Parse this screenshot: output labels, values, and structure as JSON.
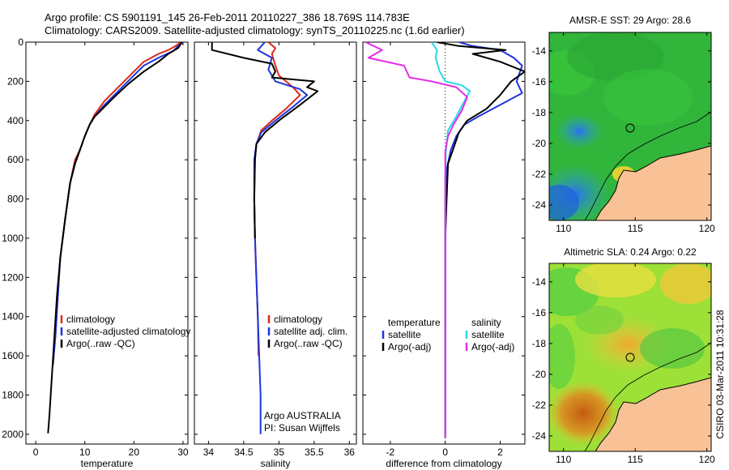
{
  "header": {
    "line1": "Argo profile: CS 5901191_145 26-Feb-2011 20110227_386 18.769S 114.783E",
    "line2": "Climatology: CARS2009. Satellite-adjusted climatology: synTS_20110225.nc (1.6d earlier)"
  },
  "colors": {
    "climatology": "#dd2a1e",
    "satellite": "#1e35dd",
    "argo": "#000000",
    "satellite_sal": "#29d9e6",
    "argo_adj_sal": "#e62ee6",
    "land": "#f8c296",
    "coast": "#000000"
  },
  "chart_data": [
    {
      "type": "line",
      "panel": "temperature",
      "xlabel": "temperature",
      "ylabel": "",
      "xlim": [
        -2,
        31
      ],
      "ylim": [
        2050,
        0
      ],
      "xticks": [
        0,
        10,
        20,
        30
      ],
      "yticks": [
        0,
        200,
        400,
        600,
        800,
        1000,
        1200,
        1400,
        1600,
        1800,
        2000
      ],
      "legend": [
        "climatology",
        "satellite-adjusted climatology",
        "Argo(..raw -QC)"
      ],
      "legend_position": "lower-right",
      "series": [
        {
          "name": "climatology",
          "color_key": "climatology",
          "points": [
            [
              29.5,
              0
            ],
            [
              28.5,
              20
            ],
            [
              27,
              40
            ],
            [
              25,
              60
            ],
            [
              22,
              100
            ],
            [
              20,
              150
            ],
            [
              18,
              200
            ],
            [
              16,
              250
            ],
            [
              14,
              300
            ],
            [
              12,
              370
            ],
            [
              11,
              420
            ],
            [
              10,
              480
            ],
            [
              9,
              550
            ],
            [
              8,
              600
            ],
            [
              7,
              720
            ],
            [
              6,
              900
            ],
            [
              5,
              1100
            ],
            [
              4.5,
              1300
            ],
            [
              4,
              1500
            ],
            [
              3.5,
              1650
            ]
          ]
        },
        {
          "name": "satellite-adjusted climatology",
          "color_key": "satellite",
          "points": [
            [
              30,
              0
            ],
            [
              29,
              20
            ],
            [
              28,
              45
            ],
            [
              25,
              80
            ],
            [
              22,
              120
            ],
            [
              20,
              170
            ],
            [
              18,
              220
            ],
            [
              16,
              270
            ],
            [
              14,
              320
            ],
            [
              12,
              380
            ],
            [
              11,
              420
            ],
            [
              10,
              480
            ],
            [
              9,
              550
            ],
            [
              8,
              620
            ],
            [
              7,
              720
            ],
            [
              6,
              900
            ],
            [
              5,
              1100
            ],
            [
              4.5,
              1300
            ],
            [
              4,
              1500
            ],
            [
              3.5,
              1650
            ]
          ]
        },
        {
          "name": "Argo(..raw -QC)",
          "color_key": "argo",
          "points": [
            [
              29.8,
              0
            ],
            [
              29,
              30
            ],
            [
              27,
              60
            ],
            [
              25,
              100
            ],
            [
              22,
              150
            ],
            [
              19,
              210
            ],
            [
              16,
              280
            ],
            [
              14,
              330
            ],
            [
              12,
              380
            ],
            [
              11,
              420
            ],
            [
              10,
              480
            ],
            [
              9,
              550
            ],
            [
              8,
              620
            ],
            [
              7,
              720
            ],
            [
              6,
              900
            ],
            [
              5,
              1100
            ],
            [
              4.3,
              1300
            ],
            [
              3.8,
              1500
            ],
            [
              3.3,
              1700
            ],
            [
              2.8,
              1900
            ],
            [
              2.5,
              1995
            ]
          ]
        }
      ]
    },
    {
      "type": "line",
      "panel": "salinity",
      "xlabel": "salinity",
      "xlim": [
        33.8,
        36.1
      ],
      "ylim": [
        2050,
        0
      ],
      "xticks": [
        34,
        34.5,
        35,
        35.5,
        36
      ],
      "legend": [
        "climatology",
        "satellite adj. clim.",
        "Argo(..raw -QC)"
      ],
      "legend_position": "lower-right",
      "annotation": [
        "Argo AUSTRALIA",
        "PI: Susan Wijffels"
      ],
      "series": [
        {
          "name": "climatology",
          "color_key": "climatology",
          "points": [
            [
              34.85,
              0
            ],
            [
              34.95,
              30
            ],
            [
              34.9,
              60
            ],
            [
              34.95,
              120
            ],
            [
              35.0,
              170
            ],
            [
              35.2,
              230
            ],
            [
              35.3,
              270
            ],
            [
              35.1,
              340
            ],
            [
              34.9,
              400
            ],
            [
              34.75,
              450
            ],
            [
              34.68,
              520
            ],
            [
              34.66,
              600
            ],
            [
              34.65,
              800
            ],
            [
              34.66,
              1000
            ],
            [
              34.68,
              1200
            ],
            [
              34.7,
              1400
            ],
            [
              34.71,
              1600
            ]
          ]
        },
        {
          "name": "satellite adj. clim.",
          "color_key": "satellite",
          "points": [
            [
              34.8,
              0
            ],
            [
              34.7,
              40
            ],
            [
              34.9,
              80
            ],
            [
              34.85,
              140
            ],
            [
              34.95,
              200
            ],
            [
              35.3,
              240
            ],
            [
              35.4,
              270
            ],
            [
              35.2,
              330
            ],
            [
              34.95,
              400
            ],
            [
              34.75,
              460
            ],
            [
              34.68,
              520
            ],
            [
              34.65,
              600
            ],
            [
              34.65,
              800
            ],
            [
              34.66,
              1000
            ],
            [
              34.68,
              1200
            ],
            [
              34.7,
              1400
            ],
            [
              34.72,
              1600
            ],
            [
              34.74,
              1800
            ],
            [
              34.74,
              2000
            ]
          ]
        },
        {
          "name": "Argo(..raw -QC)",
          "color_key": "argo",
          "points": [
            [
              34.05,
              0
            ],
            [
              34.05,
              40
            ],
            [
              34.5,
              80
            ],
            [
              34.9,
              110
            ],
            [
              34.95,
              150
            ],
            [
              34.9,
              180
            ],
            [
              35.5,
              200
            ],
            [
              35.4,
              230
            ],
            [
              35.55,
              250
            ],
            [
              35.3,
              320
            ],
            [
              35.0,
              400
            ],
            [
              34.8,
              460
            ],
            [
              34.68,
              520
            ],
            [
              34.66,
              600
            ],
            [
              34.65,
              800
            ],
            [
              34.66,
              1000
            ]
          ]
        }
      ]
    },
    {
      "type": "line",
      "panel": "difference",
      "xlabel": "difference from climatology",
      "xlim": [
        -3.0,
        2.9
      ],
      "ylim": [
        2050,
        0
      ],
      "xticks": [
        -2,
        0,
        2
      ],
      "legend_left": [
        "temperature",
        "satellite",
        "Argo(-adj)"
      ],
      "legend_right": [
        "salinity",
        "satellite",
        "Argo(-adj)"
      ],
      "legend_position": "lower-center",
      "series": [
        {
          "name": "satellite",
          "color_key": "satellite",
          "points": [
            [
              0.5,
              0
            ],
            [
              1.0,
              20
            ],
            [
              2.0,
              40
            ],
            [
              2.5,
              80
            ],
            [
              2.8,
              120
            ],
            [
              2.6,
              200
            ],
            [
              2.8,
              260
            ],
            [
              2.0,
              320
            ],
            [
              1.2,
              380
            ],
            [
              0.7,
              420
            ],
            [
              0.4,
              480
            ],
            [
              0.2,
              550
            ],
            [
              0.05,
              650
            ],
            [
              0,
              800
            ],
            [
              0,
              1000
            ],
            [
              0,
              1200
            ],
            [
              0,
              1400
            ],
            [
              0,
              1600
            ],
            [
              0,
              1800
            ],
            [
              0,
              2000
            ]
          ]
        },
        {
          "name": "Argo(-adj)",
          "color_key": "argo",
          "points": [
            [
              -0.3,
              0
            ],
            [
              0.5,
              20
            ],
            [
              2.2,
              40
            ],
            [
              1.0,
              60
            ],
            [
              2.0,
              100
            ],
            [
              2.9,
              150
            ],
            [
              2.4,
              200
            ],
            [
              2.0,
              270
            ],
            [
              1.5,
              340
            ],
            [
              0.8,
              400
            ],
            [
              0.5,
              460
            ],
            [
              0.3,
              540
            ],
            [
              0.1,
              620
            ],
            [
              0.05,
              800
            ],
            [
              0,
              1000
            ],
            [
              0,
              1300
            ],
            [
              0,
              1600
            ],
            [
              0,
              1900
            ],
            [
              0,
              2020
            ]
          ]
        },
        {
          "name": "satellite",
          "color_key": "satellite_sal",
          "points": [
            [
              -0.5,
              0
            ],
            [
              -0.3,
              40
            ],
            [
              -0.35,
              80
            ],
            [
              -0.2,
              150
            ],
            [
              0,
              200
            ],
            [
              0.6,
              220
            ],
            [
              0.9,
              250
            ],
            [
              0.7,
              300
            ],
            [
              0.4,
              380
            ],
            [
              0.1,
              450
            ],
            [
              0.02,
              560
            ],
            [
              0,
              700
            ],
            [
              0,
              1000
            ],
            [
              0,
              1300
            ],
            [
              0,
              1600
            ],
            [
              0,
              1900
            ],
            [
              0,
              2020
            ]
          ]
        },
        {
          "name": "Argo(-adj)",
          "color_key": "argo_adj_sal",
          "points": [
            [
              -2.9,
              0
            ],
            [
              -2.3,
              40
            ],
            [
              -2.8,
              80
            ],
            [
              -1.5,
              120
            ],
            [
              -1.3,
              180
            ],
            [
              -0.5,
              200
            ],
            [
              0.4,
              230
            ],
            [
              0.8,
              280
            ],
            [
              0.6,
              350
            ],
            [
              0.3,
              420
            ],
            [
              0.1,
              480
            ],
            [
              0.0,
              560
            ],
            [
              0,
              700
            ],
            [
              0,
              1000
            ],
            [
              0,
              1300
            ],
            [
              0,
              1600
            ],
            [
              0,
              1900
            ],
            [
              0,
              2020
            ]
          ]
        }
      ]
    },
    {
      "type": "heatmap",
      "panel": "sst-map",
      "title": "AMSR-E SST: 29 Argo: 28.6",
      "xlim": [
        109,
        120.3
      ],
      "ylim": [
        -25,
        -12.8
      ],
      "xticks": [
        110,
        115,
        120
      ],
      "yticks": [
        -14,
        -16,
        -18,
        -20,
        -22,
        -24
      ],
      "argo_position": [
        114.78,
        -18.77
      ]
    },
    {
      "type": "heatmap",
      "panel": "sla-map",
      "title": "Altimetric SLA: 0.24 Argo: 0.22",
      "xlim": [
        109,
        120.3
      ],
      "ylim": [
        -25,
        -12.8
      ],
      "xticks": [
        110,
        115,
        120
      ],
      "yticks": [
        -14,
        -16,
        -18,
        -20,
        -22,
        -24
      ],
      "argo_position": [
        114.78,
        -18.77
      ]
    }
  ],
  "footer": {
    "side_label": "CSIRO 03-Mar-2011 10:31:28"
  }
}
